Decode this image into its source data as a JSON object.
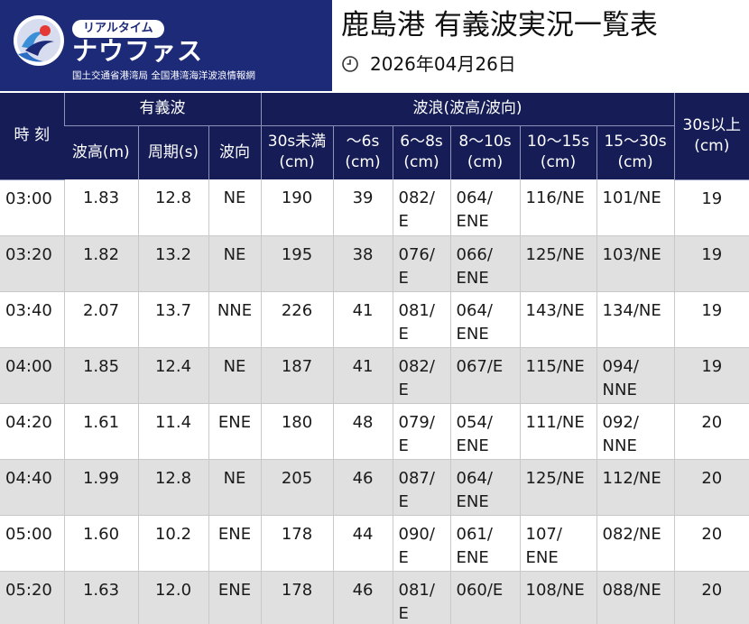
{
  "logo": {
    "pill": "リアルタイム",
    "name": "ナウファス",
    "subtitle": "国土交通省港湾局 全国港湾海洋波浪情報網",
    "brand_color": "#1c2a78"
  },
  "title": "鹿島港 有義波実況一覧表",
  "date_icon": "clock-icon",
  "date": "2026年04月26日",
  "header": {
    "time": "時 刻",
    "significant_wave": "有義波",
    "wave_spectrum": "波浪(波高/波向)",
    "height": "波高(m)",
    "period": "周期(s)",
    "direction": "波向",
    "band1": "30s未満\n(cm)",
    "band2": "〜6s\n(cm)",
    "band3": "6〜8s\n(cm)",
    "band4": "8〜10s\n(cm)",
    "band5": "10〜15s\n(cm)",
    "band6": "15〜30s\n(cm)",
    "band7": "30s以上\n(cm)"
  },
  "rows": [
    {
      "time": "03:00",
      "height": "1.83",
      "period": "12.8",
      "dir": "NE",
      "b1": "190",
      "b2": "39",
      "b3": "082/\nE",
      "b4": "064/\nENE",
      "b5": "116/NE",
      "b6": "101/NE",
      "b7": "19"
    },
    {
      "time": "03:20",
      "height": "1.82",
      "period": "13.2",
      "dir": "NE",
      "b1": "195",
      "b2": "38",
      "b3": "076/\nE",
      "b4": "066/\nENE",
      "b5": "125/NE",
      "b6": "103/NE",
      "b7": "19"
    },
    {
      "time": "03:40",
      "height": "2.07",
      "period": "13.7",
      "dir": "NNE",
      "b1": "226",
      "b2": "41",
      "b3": "081/\nE",
      "b4": "064/\nENE",
      "b5": "143/NE",
      "b6": "134/NE",
      "b7": "19"
    },
    {
      "time": "04:00",
      "height": "1.85",
      "period": "12.4",
      "dir": "NE",
      "b1": "187",
      "b2": "41",
      "b3": "082/\nE",
      "b4": "067/E",
      "b5": "115/NE",
      "b6": "094/\nNNE",
      "b7": "19"
    },
    {
      "time": "04:20",
      "height": "1.61",
      "period": "11.4",
      "dir": "ENE",
      "b1": "180",
      "b2": "48",
      "b3": "079/\nE",
      "b4": "054/\nENE",
      "b5": "111/NE",
      "b6": "092/\nNNE",
      "b7": "20"
    },
    {
      "time": "04:40",
      "height": "1.99",
      "period": "12.8",
      "dir": "NE",
      "b1": "205",
      "b2": "46",
      "b3": "087/\nE",
      "b4": "064/\nENE",
      "b5": "125/NE",
      "b6": "112/NE",
      "b7": "20"
    },
    {
      "time": "05:00",
      "height": "1.60",
      "period": "10.2",
      "dir": "ENE",
      "b1": "178",
      "b2": "44",
      "b3": "090/\nE",
      "b4": "061/\nENE",
      "b5": "107/\nENE",
      "b6": "082/NE",
      "b7": "20"
    },
    {
      "time": "05:20",
      "height": "1.63",
      "period": "12.0",
      "dir": "ENE",
      "b1": "178",
      "b2": "46",
      "b3": "081/\nE",
      "b4": "060/E",
      "b5": "108/NE",
      "b6": "088/NE",
      "b7": "20"
    }
  ]
}
